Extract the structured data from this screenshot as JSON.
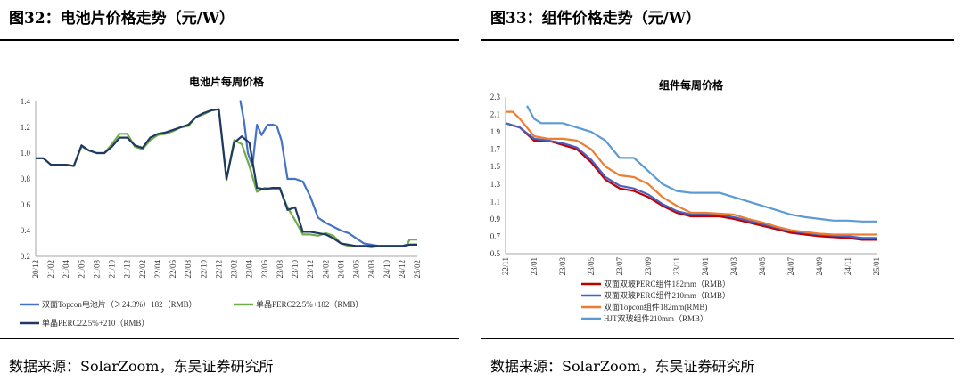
{
  "colors": {
    "blue": "#4472c4",
    "green": "#70ad47",
    "navy": "#203864",
    "red": "#c00000",
    "purple_blue": "#4a5fc1",
    "orange": "#ed7d31",
    "light_blue": "#5b9bd5"
  },
  "figure1": {
    "heading": "图32：电池片价格走势（元/W）",
    "source": "数据来源：SolarZoom，东吴证券研究所",
    "chart_data": {
      "type": "line",
      "title": "电池片每周价格",
      "ylim": [
        0.2,
        1.4
      ],
      "yticks": [
        "0.2",
        "0.4",
        "0.6",
        "0.8",
        "1.0",
        "1.2",
        "1.4"
      ],
      "x_index_range": [
        0,
        50
      ],
      "xtick_labels": [
        "20/12",
        "21/02",
        "21/04",
        "21/06",
        "21/08",
        "21/10",
        "21/12",
        "22/02",
        "22/04",
        "22/06",
        "22/08",
        "22/10",
        "22/12",
        "23/02",
        "23/04",
        "23/06",
        "23/08",
        "23/10",
        "23/12",
        "24/02",
        "24/04",
        "24/06",
        "24/08",
        "24/10",
        "24/12",
        "25/02"
      ],
      "legend_position": "bottom",
      "series": [
        {
          "name": "双面Topcon电池片（＞24.3%）182（RMB）",
          "color_key": "blue",
          "x": [
            26.8,
            27.3,
            27.8,
            28.4,
            29.0,
            29.6,
            30.4,
            31.1,
            31.6,
            32.2,
            33.0,
            34.0,
            35.0,
            36.0,
            37.0,
            38.0,
            40.0,
            41.0,
            42.0,
            43.0,
            44.0,
            45.0,
            46.0,
            47.0,
            48.0,
            48.6,
            50.0
          ],
          "y": [
            1.41,
            1.25,
            1.0,
            0.9,
            1.22,
            1.14,
            1.22,
            1.22,
            1.21,
            1.1,
            0.8,
            0.8,
            0.78,
            0.66,
            0.5,
            0.46,
            0.4,
            0.38,
            0.34,
            0.3,
            0.29,
            0.28,
            0.28,
            0.28,
            0.28,
            0.29,
            0.29
          ]
        },
        {
          "name": "单晶PERC22.5%+182（RMB）",
          "color_key": "green",
          "x": [
            0,
            1,
            2,
            3,
            4,
            5,
            6,
            7,
            8,
            9,
            10,
            11,
            12,
            13,
            14,
            15,
            16,
            17,
            18,
            19,
            20,
            21,
            22,
            23,
            24,
            25,
            26,
            27,
            28,
            29,
            30,
            31,
            32,
            33,
            34,
            35,
            36,
            37,
            38,
            39,
            40,
            41,
            42,
            43,
            44,
            45,
            46,
            47,
            48,
            48.6,
            49,
            50
          ],
          "y": [
            0.96,
            0.96,
            0.91,
            0.91,
            0.91,
            0.9,
            1.05,
            1.02,
            1.0,
            1.0,
            1.07,
            1.15,
            1.15,
            1.05,
            1.03,
            1.1,
            1.14,
            1.15,
            1.17,
            1.2,
            1.21,
            1.28,
            1.3,
            1.33,
            1.34,
            0.79,
            1.1,
            1.07,
            0.9,
            0.7,
            0.73,
            0.72,
            0.72,
            0.58,
            0.48,
            0.37,
            0.37,
            0.36,
            0.38,
            0.36,
            0.3,
            0.28,
            0.28,
            0.28,
            0.27,
            0.28,
            0.28,
            0.28,
            0.28,
            0.28,
            0.33,
            0.33
          ]
        },
        {
          "name": "单晶PERC22.5%+210（RMB）",
          "color_key": "navy",
          "x": [
            0,
            1,
            2,
            3,
            4,
            5,
            6,
            7,
            8,
            9,
            10,
            11,
            12,
            13,
            14,
            15,
            16,
            17,
            18,
            19,
            20,
            21,
            22,
            23,
            24,
            25,
            26,
            27,
            28,
            29,
            30,
            31,
            32,
            33,
            34,
            35,
            36,
            37,
            38,
            39,
            40,
            41,
            42,
            43,
            44,
            45,
            46,
            47,
            48,
            49,
            50
          ],
          "y": [
            0.96,
            0.96,
            0.91,
            0.91,
            0.91,
            0.9,
            1.06,
            1.02,
            1.0,
            1.0,
            1.05,
            1.12,
            1.12,
            1.06,
            1.04,
            1.12,
            1.15,
            1.16,
            1.18,
            1.2,
            1.22,
            1.28,
            1.31,
            1.33,
            1.34,
            0.8,
            1.08,
            1.13,
            1.08,
            0.73,
            0.72,
            0.73,
            0.73,
            0.56,
            0.58,
            0.39,
            0.39,
            0.38,
            0.37,
            0.34,
            0.3,
            0.29,
            0.28,
            0.28,
            0.28,
            0.28,
            0.28,
            0.28,
            0.28,
            0.29,
            0.29
          ]
        }
      ]
    }
  },
  "figure2": {
    "heading": "图33：组件价格走势（元/W）",
    "source": "数据来源：SolarZoom，东吴证券研究所",
    "chart_data": {
      "type": "line",
      "title": "组件每周价格",
      "ylim": [
        0.5,
        2.3
      ],
      "yticks": [
        "0.5",
        "0.7",
        "0.9",
        "1.1",
        "1.3",
        "1.5",
        "1.7",
        "1.9",
        "2.1",
        "2.3"
      ],
      "x_index_range": [
        0,
        52
      ],
      "xtick_labels": [
        "22/11",
        "23/01",
        "23/03",
        "23/05",
        "23/07",
        "23/09",
        "23/11",
        "24/01",
        "24/03",
        "24/05",
        "24/07",
        "24/09",
        "24/11",
        "25/01"
      ],
      "legend_position": "bottom",
      "series": [
        {
          "name": "双面双玻PERC组件182mm（RMB）",
          "color_key": "red",
          "x": [
            0,
            2,
            4,
            6,
            8,
            10,
            12,
            14,
            16,
            18,
            20,
            22,
            24,
            26,
            28,
            30,
            32,
            34,
            36,
            38,
            40,
            42,
            44,
            46,
            48,
            50,
            52
          ],
          "y": [
            2.0,
            1.95,
            1.8,
            1.8,
            1.75,
            1.7,
            1.55,
            1.35,
            1.25,
            1.22,
            1.15,
            1.05,
            0.97,
            0.93,
            0.93,
            0.93,
            0.9,
            0.86,
            0.82,
            0.78,
            0.74,
            0.72,
            0.7,
            0.69,
            0.68,
            0.66,
            0.66
          ]
        },
        {
          "name": "双面双玻PERC组件210mm（RMB）",
          "color_key": "purple_blue",
          "x": [
            0,
            2,
            4,
            6,
            8,
            10,
            12,
            14,
            16,
            18,
            20,
            22,
            24,
            26,
            28,
            30,
            32,
            34,
            36,
            38,
            40,
            42,
            44,
            46,
            48,
            50,
            52
          ],
          "y": [
            2.0,
            1.95,
            1.82,
            1.8,
            1.77,
            1.72,
            1.58,
            1.38,
            1.28,
            1.25,
            1.18,
            1.07,
            0.99,
            0.95,
            0.95,
            0.95,
            0.92,
            0.88,
            0.84,
            0.8,
            0.76,
            0.74,
            0.72,
            0.71,
            0.7,
            0.68,
            0.68
          ]
        },
        {
          "name": "双面Topcon组件182mm(RMB)",
          "color_key": "orange",
          "x": [
            0,
            1,
            2,
            4,
            6,
            8,
            10,
            12,
            14,
            16,
            18,
            20,
            22,
            24,
            26,
            28,
            30,
            32,
            34,
            36,
            38,
            40,
            42,
            44,
            46,
            48,
            50,
            52
          ],
          "y": [
            2.13,
            2.13,
            2.05,
            1.85,
            1.82,
            1.82,
            1.8,
            1.7,
            1.5,
            1.4,
            1.38,
            1.3,
            1.15,
            1.05,
            0.97,
            0.97,
            0.96,
            0.95,
            0.9,
            0.86,
            0.81,
            0.77,
            0.75,
            0.73,
            0.72,
            0.72,
            0.72,
            0.72
          ]
        },
        {
          "name": "HJT双玻组件210mm（RMB）",
          "color_key": "light_blue",
          "x": [
            3,
            4,
            5,
            6,
            8,
            10,
            12,
            14,
            16,
            18,
            20,
            22,
            24,
            26,
            28,
            30,
            32,
            34,
            36,
            38,
            40,
            42,
            44,
            46,
            48,
            50,
            52
          ],
          "y": [
            2.2,
            2.05,
            2.0,
            2.0,
            2.0,
            1.95,
            1.9,
            1.8,
            1.6,
            1.6,
            1.45,
            1.3,
            1.22,
            1.2,
            1.2,
            1.2,
            1.15,
            1.1,
            1.05,
            1.0,
            0.95,
            0.92,
            0.9,
            0.88,
            0.88,
            0.87,
            0.87
          ]
        }
      ]
    }
  }
}
